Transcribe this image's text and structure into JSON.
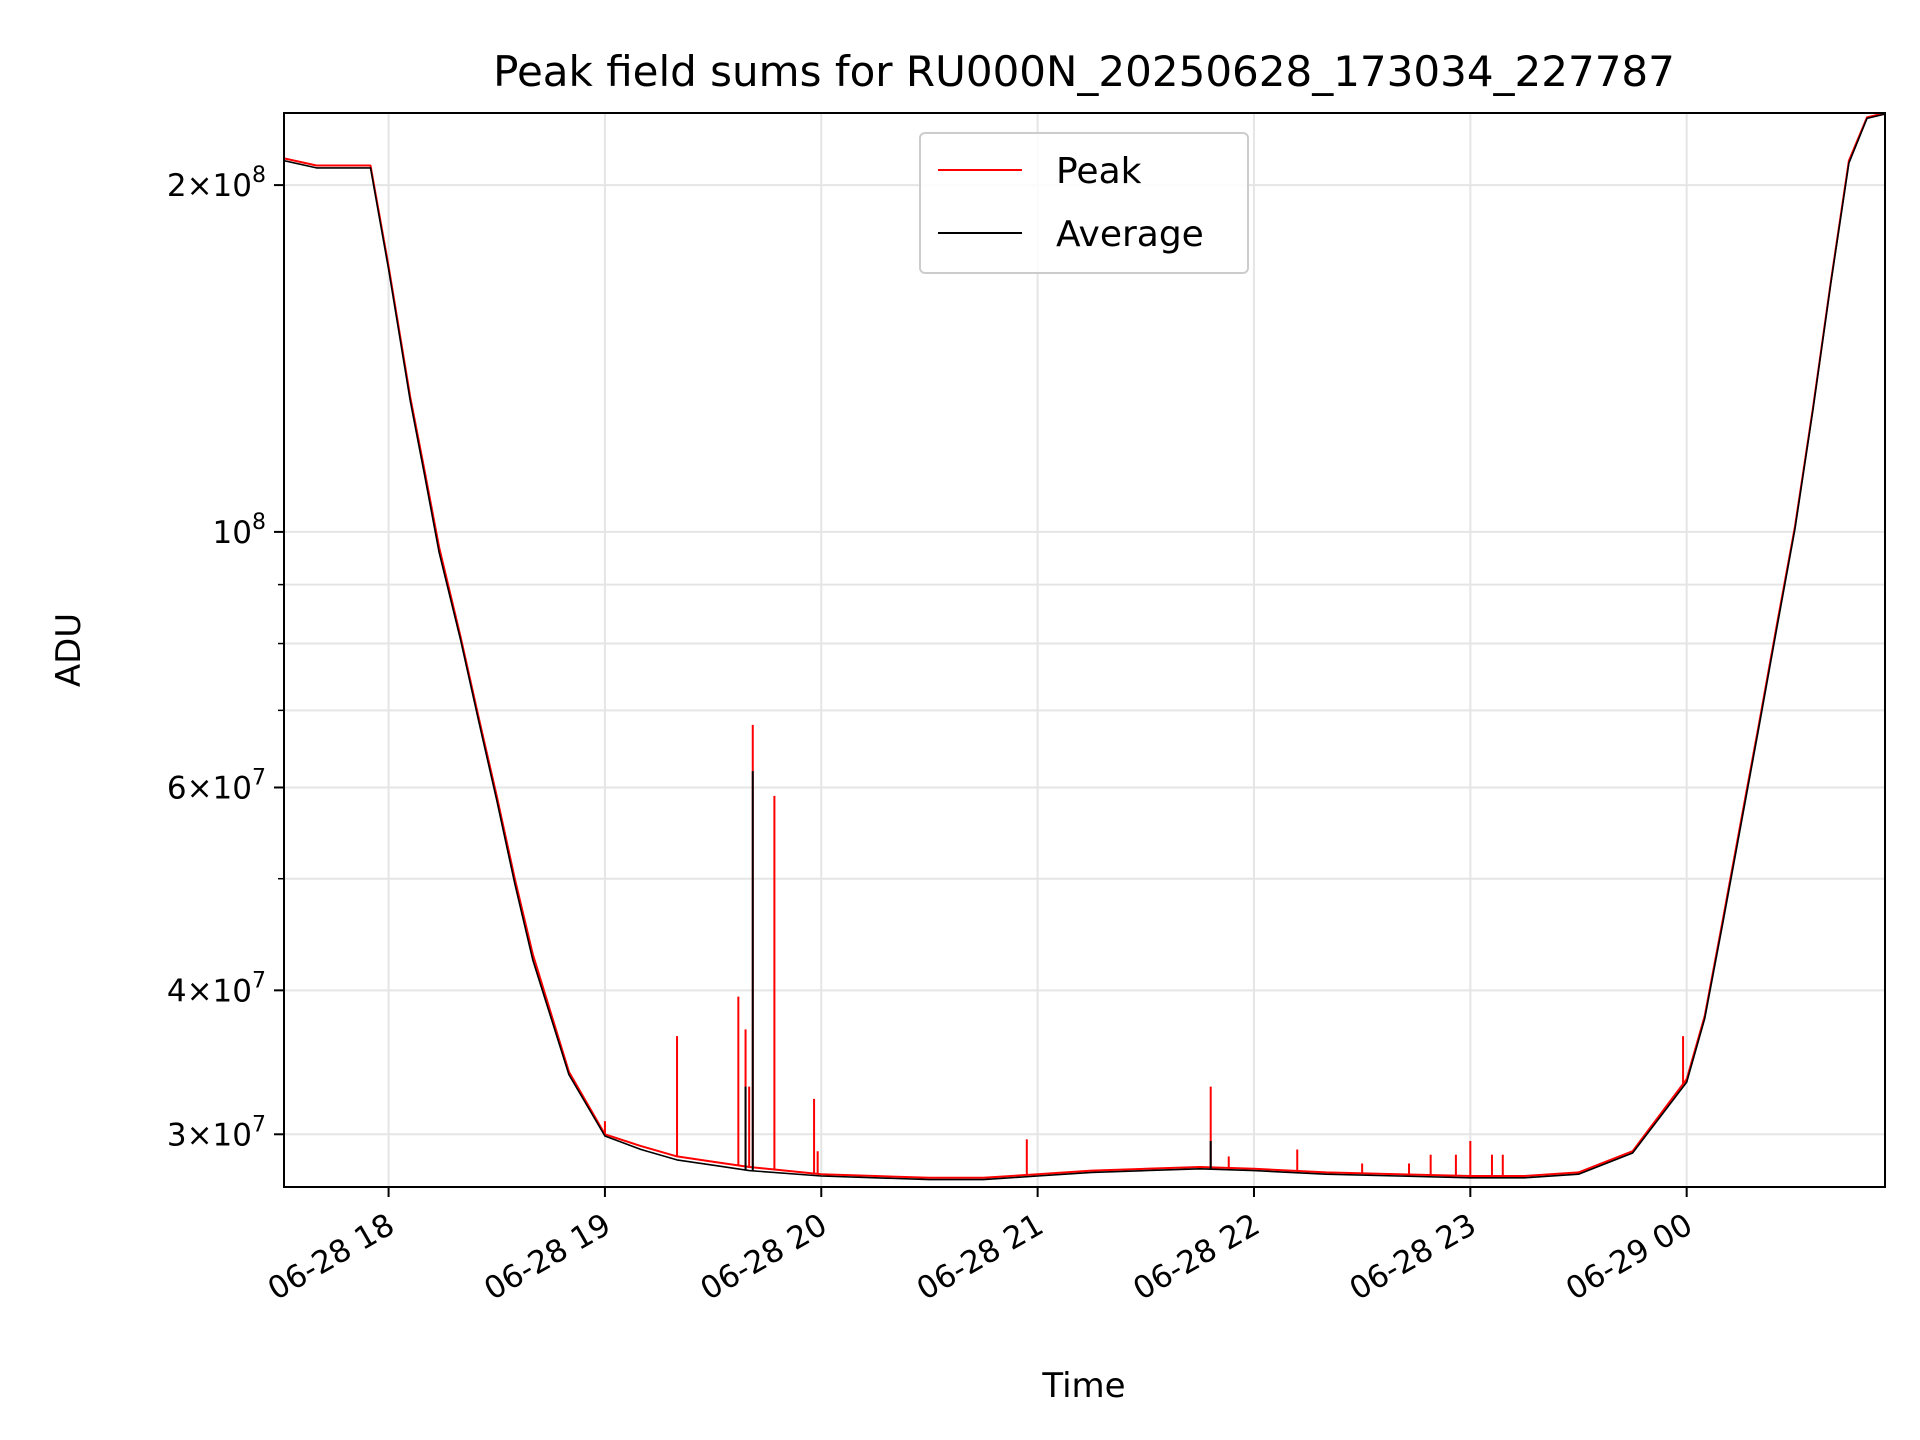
{
  "chart_data": {
    "type": "line",
    "title": "Peak field sums for RU000N_20250628_173034_227787",
    "xlabel": "Time",
    "ylabel": "ADU",
    "yscale": "log",
    "ylim": [
      27000000,
      231000000
    ],
    "xlim": [
      "06-28 17:31",
      "06-29 00:55"
    ],
    "grid": true,
    "legend_position": "top-center",
    "x_ticks": [
      {
        "t": "06-28 18:00",
        "label": "06-28 18"
      },
      {
        "t": "06-28 19:00",
        "label": "06-28 19"
      },
      {
        "t": "06-28 20:00",
        "label": "06-28 20"
      },
      {
        "t": "06-28 21:00",
        "label": "06-28 21"
      },
      {
        "t": "06-28 22:00",
        "label": "06-28 22"
      },
      {
        "t": "06-28 23:00",
        "label": "06-28 23"
      },
      {
        "t": "06-29 00:00",
        "label": "06-29 00"
      }
    ],
    "y_major_ticks": [
      {
        "value": 30000000,
        "mant": "3",
        "exp": "7"
      },
      {
        "value": 40000000,
        "mant": "4",
        "exp": "7"
      },
      {
        "value": 60000000,
        "mant": "6",
        "exp": "7"
      },
      {
        "value": 100000000,
        "mant": "",
        "exp": "8"
      },
      {
        "value": 200000000,
        "mant": "2",
        "exp": "8"
      }
    ],
    "y_minor_ticks": [
      50000000,
      70000000,
      80000000,
      90000000
    ],
    "series": [
      {
        "name": "Peak",
        "color": "#ff0000",
        "x": [
          "06-28 17:31",
          "06-28 17:40",
          "06-28 17:48",
          "06-28 17:55",
          "06-28 18:00",
          "06-28 18:06",
          "06-28 18:10",
          "06-28 18:14",
          "06-28 18:20",
          "06-28 18:25",
          "06-28 18:30",
          "06-28 18:35",
          "06-28 18:40",
          "06-28 18:50",
          "06-28 19:00",
          "06-28 19:10",
          "06-28 19:20",
          "06-28 19:30",
          "06-28 19:40",
          "06-28 20:00",
          "06-28 20:15",
          "06-28 20:30",
          "06-28 20:45",
          "06-28 21:00",
          "06-28 21:15",
          "06-28 21:30",
          "06-28 21:45",
          "06-28 22:00",
          "06-28 22:20",
          "06-28 22:40",
          "06-28 23:00",
          "06-28 23:15",
          "06-28 23:30",
          "06-28 23:45",
          "06-29 00:00",
          "06-29 00:05",
          "06-29 00:10",
          "06-29 00:15",
          "06-29 00:20",
          "06-29 00:25",
          "06-29 00:30",
          "06-29 00:35",
          "06-29 00:40",
          "06-29 00:45",
          "06-29 00:50",
          "06-29 00:55"
        ],
        "y": [
          211000000,
          208000000,
          208000000,
          208000000,
          170000000,
          131000000,
          113000000,
          97000000,
          81000000,
          69000000,
          59000000,
          50000000,
          43000000,
          34000000,
          30000000,
          29300000,
          28700000,
          28400000,
          28100000,
          27700000,
          27600000,
          27500000,
          27500000,
          27700000,
          27900000,
          28000000,
          28100000,
          28000000,
          27800000,
          27700000,
          27600000,
          27600000,
          27800000,
          29000000,
          33500000,
          38000000,
          46000000,
          56000000,
          68000000,
          83000000,
          101000000,
          128000000,
          165000000,
          210000000,
          229000000,
          231000000
        ],
        "spikes": [
          {
            "x": "06-28 19:00",
            "y": 30800000
          },
          {
            "x": "06-28 19:20",
            "y": 36500000
          },
          {
            "x": "06-28 19:37",
            "y": 39500000
          },
          {
            "x": "06-28 19:39",
            "y": 37000000
          },
          {
            "x": "06-28 19:40",
            "y": 33000000
          },
          {
            "x": "06-28 19:41",
            "y": 68000000
          },
          {
            "x": "06-28 19:47",
            "y": 59000000
          },
          {
            "x": "06-28 19:58",
            "y": 32200000
          },
          {
            "x": "06-28 19:59",
            "y": 29000000
          },
          {
            "x": "06-28 20:57",
            "y": 29700000
          },
          {
            "x": "06-28 21:48",
            "y": 33000000
          },
          {
            "x": "06-28 21:53",
            "y": 28700000
          },
          {
            "x": "06-28 22:12",
            "y": 29100000
          },
          {
            "x": "06-28 22:30",
            "y": 28300000
          },
          {
            "x": "06-28 22:43",
            "y": 28300000
          },
          {
            "x": "06-28 22:49",
            "y": 28800000
          },
          {
            "x": "06-28 22:56",
            "y": 28800000
          },
          {
            "x": "06-28 23:00",
            "y": 29600000
          },
          {
            "x": "06-28 23:06",
            "y": 28800000
          },
          {
            "x": "06-28 23:09",
            "y": 28800000
          },
          {
            "x": "06-28 23:59",
            "y": 36500000
          }
        ]
      },
      {
        "name": "Average",
        "color": "#000000",
        "x": [
          "06-28 17:31",
          "06-28 17:40",
          "06-28 17:48",
          "06-28 17:55",
          "06-28 18:00",
          "06-28 18:06",
          "06-28 18:10",
          "06-28 18:14",
          "06-28 18:20",
          "06-28 18:25",
          "06-28 18:30",
          "06-28 18:35",
          "06-28 18:40",
          "06-28 18:50",
          "06-28 19:00",
          "06-28 19:10",
          "06-28 19:20",
          "06-28 19:30",
          "06-28 19:40",
          "06-28 20:00",
          "06-28 20:15",
          "06-28 20:30",
          "06-28 20:45",
          "06-28 21:00",
          "06-28 21:15",
          "06-28 21:30",
          "06-28 21:45",
          "06-28 22:00",
          "06-28 22:20",
          "06-28 22:40",
          "06-28 23:00",
          "06-28 23:15",
          "06-28 23:30",
          "06-28 23:45",
          "06-29 00:00",
          "06-29 00:05",
          "06-29 00:10",
          "06-29 00:15",
          "06-29 00:20",
          "06-29 00:25",
          "06-29 00:30",
          "06-29 00:35",
          "06-29 00:40",
          "06-29 00:45",
          "06-29 00:50",
          "06-29 00:55"
        ],
        "y": [
          210000000,
          207000000,
          207000000,
          207000000,
          169000000,
          130000000,
          112000000,
          96000000,
          80500000,
          68500000,
          58500000,
          49500000,
          42500000,
          33800000,
          29900000,
          29100000,
          28500000,
          28200000,
          27900000,
          27600000,
          27500000,
          27400000,
          27400000,
          27600000,
          27800000,
          27900000,
          28000000,
          27900000,
          27700000,
          27600000,
          27500000,
          27500000,
          27700000,
          28900000,
          33300000,
          37800000,
          45700000,
          55600000,
          67600000,
          82500000,
          100500000,
          127500000,
          164500000,
          209000000,
          228500000,
          230500000
        ],
        "spikes": [
          {
            "x": "06-28 19:39",
            "y": 33000000
          },
          {
            "x": "06-28 19:41",
            "y": 62000000
          },
          {
            "x": "06-28 21:48",
            "y": 29600000
          }
        ]
      }
    ]
  }
}
